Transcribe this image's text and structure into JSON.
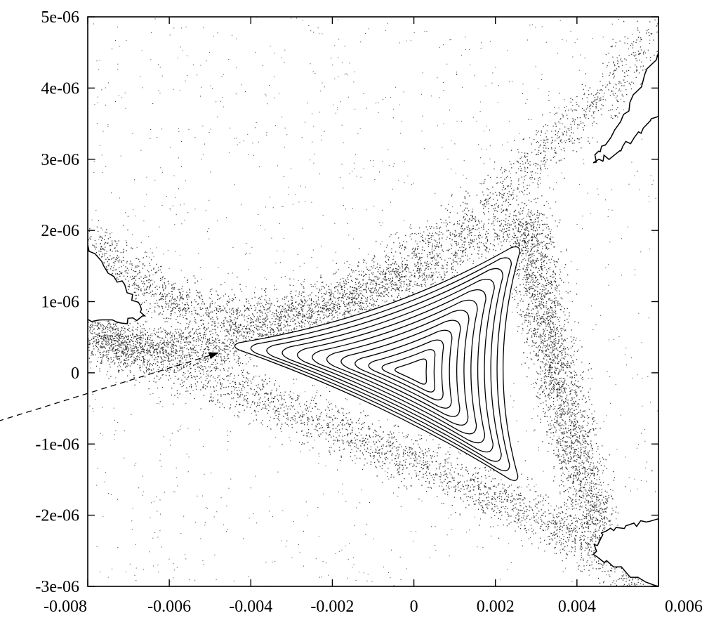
{
  "chart_data": {
    "type": "scatter",
    "title": "",
    "xlabel": "",
    "ylabel": "",
    "xlim": [
      -0.008,
      0.006
    ],
    "ylim": [
      -3e-06,
      5e-06
    ],
    "x_ticks": [
      {
        "value": -0.008,
        "label": "-0.008"
      },
      {
        "value": -0.006,
        "label": "-0.006"
      },
      {
        "value": -0.004,
        "label": "-0.004"
      },
      {
        "value": -0.002,
        "label": "-0.002"
      },
      {
        "value": 0,
        "label": "0"
      },
      {
        "value": 0.002,
        "label": "0.002"
      },
      {
        "value": 0.004,
        "label": "0.004"
      },
      {
        "value": 0.006,
        "label": "0.006"
      }
    ],
    "y_ticks": [
      {
        "value": 5e-06,
        "label": "5e-06"
      },
      {
        "value": 4e-06,
        "label": "4e-06"
      },
      {
        "value": 3e-06,
        "label": "3e-06"
      },
      {
        "value": 2e-06,
        "label": "2e-06"
      },
      {
        "value": 1e-06,
        "label": "1e-06"
      },
      {
        "value": 0,
        "label": "0"
      },
      {
        "value": -1e-06,
        "label": "-1e-06"
      },
      {
        "value": -2e-06,
        "label": "-2e-06"
      },
      {
        "value": -3e-06,
        "label": "-3e-06"
      }
    ],
    "grid": false,
    "legend": "none",
    "series": [
      {
        "kind": "invariant-curves",
        "center": [
          0.0,
          0.0
        ],
        "separatrix_vertices": [
          [
            -0.0045,
            3.8e-07
          ],
          [
            0.0026,
            1.8e-06
          ],
          [
            0.00255,
            -1.55e-06
          ]
        ],
        "levels": [
          0.12,
          0.2,
          0.28,
          0.36,
          0.44,
          0.52,
          0.6,
          0.68,
          0.76,
          0.84,
          0.92,
          1.0
        ],
        "color": "#000000"
      },
      {
        "kind": "chaotic-scatter",
        "color": "#333333",
        "bands": [
          {
            "from": [
              -0.008,
              1.9e-06
            ],
            "to": [
              0.006,
              4.8e-06
            ],
            "via": [
              -0.002,
              1.05e-06
            ]
          },
          {
            "from": [
              -0.008,
              5e-07
            ],
            "to": [
              0.006,
              -3e-06
            ],
            "via": [
              0.0005,
              -1.35e-06
            ]
          },
          {
            "from": [
              -0.008,
              6e-07
            ],
            "to": [
              0.003,
              2.2e-06
            ],
            "via": [
              -0.004,
              5e-07
            ]
          },
          {
            "from": [
              0.0028,
              2.1e-06
            ],
            "to": [
              0.0045,
              -2.2e-06
            ],
            "via": [
              0.0035,
              0.0
            ]
          }
        ]
      }
    ],
    "islands": [
      {
        "position": "left",
        "points": [
          [
            -0.008,
            1.8e-06
          ],
          [
            -0.0075,
            1.4e-06
          ],
          [
            -0.0069,
            1.1e-06
          ],
          [
            -0.0066,
            8e-07
          ],
          [
            -0.0072,
            7e-07
          ],
          [
            -0.008,
            7.5e-07
          ]
        ]
      },
      {
        "position": "top-right",
        "points": [
          [
            0.006,
            4.5e-06
          ],
          [
            0.0053,
            3.8e-06
          ],
          [
            0.0047,
            3.2e-06
          ],
          [
            0.0044,
            2.95e-06
          ],
          [
            0.0049,
            3.05e-06
          ],
          [
            0.0054,
            3.3e-06
          ],
          [
            0.006,
            3.6e-06
          ]
        ]
      },
      {
        "position": "bottom-right",
        "points": [
          [
            0.006,
            -2.05e-06
          ],
          [
            0.0052,
            -2.15e-06
          ],
          [
            0.0046,
            -2.25e-06
          ],
          [
            0.0044,
            -2.55e-06
          ],
          [
            0.0052,
            -2.8e-06
          ],
          [
            0.006,
            -3e-06
          ]
        ]
      }
    ],
    "annotations": [
      {
        "type": "arrow",
        "from": [
          -0.0102,
          -6.8e-07
        ],
        "to": [
          -0.0048,
          2.8e-07
        ]
      }
    ]
  }
}
